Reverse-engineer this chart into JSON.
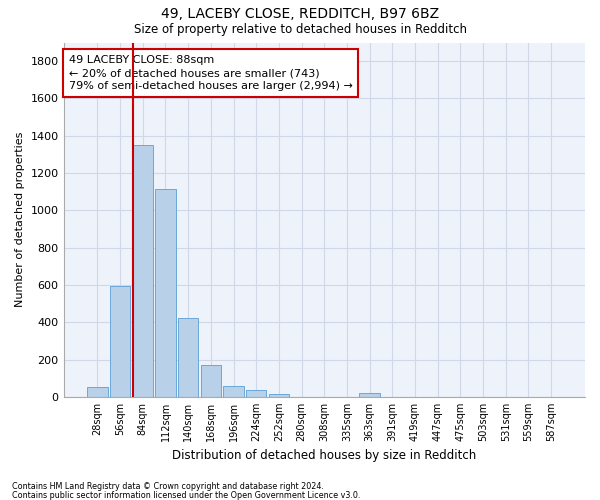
{
  "title_line1": "49, LACEBY CLOSE, REDDITCH, B97 6BZ",
  "title_line2": "Size of property relative to detached houses in Redditch",
  "xlabel": "Distribution of detached houses by size in Redditch",
  "ylabel": "Number of detached properties",
  "categories": [
    "28sqm",
    "56sqm",
    "84sqm",
    "112sqm",
    "140sqm",
    "168sqm",
    "196sqm",
    "224sqm",
    "252sqm",
    "280sqm",
    "308sqm",
    "335sqm",
    "363sqm",
    "391sqm",
    "419sqm",
    "447sqm",
    "475sqm",
    "503sqm",
    "531sqm",
    "559sqm",
    "587sqm"
  ],
  "bar_values": [
    50,
    595,
    1350,
    1115,
    425,
    170,
    60,
    38,
    15,
    0,
    0,
    0,
    18,
    0,
    0,
    0,
    0,
    0,
    0,
    0,
    0
  ],
  "bar_color": "#b8d0e8",
  "bar_edge_color": "#5a9fd4",
  "vline_x": 1.575,
  "vline_color": "#cc0000",
  "annotation_text": "49 LACEBY CLOSE: 88sqm\n← 20% of detached houses are smaller (743)\n79% of semi-detached houses are larger (2,994) →",
  "annotation_box_color": "#cc0000",
  "annotation_box_facecolor": "white",
  "ylim": [
    0,
    1900
  ],
  "yticks": [
    0,
    200,
    400,
    600,
    800,
    1000,
    1200,
    1400,
    1600,
    1800
  ],
  "grid_color": "#d0d8e8",
  "background_color": "#eef2fa",
  "footer_line1": "Contains HM Land Registry data © Crown copyright and database right 2024.",
  "footer_line2": "Contains public sector information licensed under the Open Government Licence v3.0."
}
